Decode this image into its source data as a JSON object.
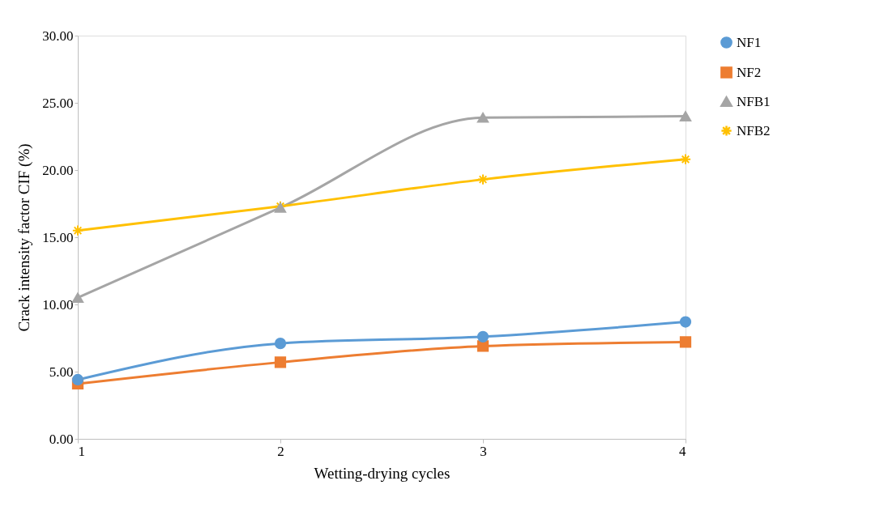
{
  "chart_data": {
    "type": "line",
    "xlabel": "Wetting-drying cycles",
    "ylabel": "Crack intensity factor CIF (%)",
    "x": [
      1,
      2,
      3,
      4
    ],
    "xlim": [
      1,
      4
    ],
    "xticks": [
      1,
      2,
      3,
      4
    ],
    "ylim": [
      0,
      30
    ],
    "yticks": [
      {
        "value": 0,
        "label": "0.00"
      },
      {
        "value": 5,
        "label": "5.00"
      },
      {
        "value": 10,
        "label": "10.00"
      },
      {
        "value": 15,
        "label": "15.00"
      },
      {
        "value": 20,
        "label": "20.00"
      },
      {
        "value": 25,
        "label": "25.00"
      },
      {
        "value": 30,
        "label": "30.00"
      }
    ],
    "grid": false,
    "legend": "right",
    "line_style": "solid",
    "series": [
      {
        "name": "NF1",
        "color": "#5b9bd5",
        "marker": "circle",
        "values": [
          4.4,
          7.1,
          7.6,
          8.7
        ]
      },
      {
        "name": "NF2",
        "color": "#ed7d31",
        "marker": "square",
        "values": [
          4.1,
          5.7,
          6.9,
          7.2
        ]
      },
      {
        "name": "NFB1",
        "color": "#a5a5a5",
        "marker": "triangle",
        "values": [
          10.5,
          17.2,
          23.9,
          24.0
        ]
      },
      {
        "name": "NFB2",
        "color": "#ffc000",
        "marker": "cross",
        "values": [
          15.5,
          17.3,
          19.3,
          20.8
        ]
      }
    ]
  }
}
